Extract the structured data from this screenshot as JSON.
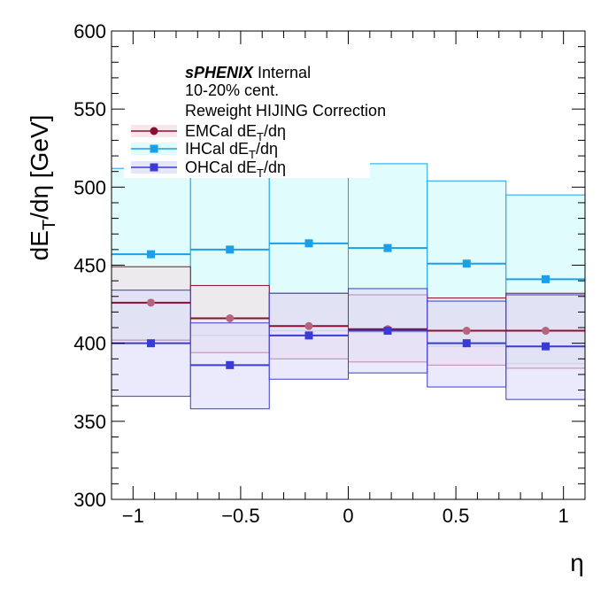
{
  "chart_data": {
    "type": "bar",
    "title": "",
    "xlabel": "η",
    "ylabel_main": "dE",
    "ylabel_sub": "T",
    "ylabel_rest": "/dη [GeV]",
    "xlim": [
      -1.1,
      1.1
    ],
    "ylim": [
      300,
      600
    ],
    "x_ticks": [
      -1,
      -0.5,
      0,
      0.5,
      1
    ],
    "x_tick_labels": [
      "−1",
      "−0.5",
      "0",
      "0.5",
      "1"
    ],
    "y_ticks": [
      300,
      350,
      400,
      450,
      500,
      550,
      600
    ],
    "y_tick_labels": [
      "300",
      "350",
      "400",
      "450",
      "500",
      "550",
      "600"
    ],
    "bin_edges": [
      -1.1,
      -0.733,
      -0.367,
      0.0,
      0.367,
      0.733,
      1.1
    ],
    "bin_centers": [
      -0.917,
      -0.55,
      -0.183,
      0.183,
      0.55,
      0.917
    ],
    "annotations": {
      "brand": "sPHENIX",
      "brand_suffix": " Internal",
      "centrality": "10-20% cent.",
      "correction": "Reweight HIJING Correction"
    },
    "series": [
      {
        "name_prefix": "EMCal dE",
        "name_sub": "T",
        "name_suffix": "/dη",
        "color": "#8b0f2e",
        "marker_color": "#b5647e",
        "fill": "#f4dde3",
        "marker": "circle",
        "values": [
          426,
          416,
          411,
          409,
          408,
          408
        ],
        "band_low": [
          402,
          394,
          390,
          388,
          386,
          384
        ],
        "band_high": [
          449,
          437,
          432,
          431,
          429,
          432
        ]
      },
      {
        "name_prefix": "IHCal dE",
        "name_sub": "T",
        "name_suffix": "/dη",
        "color": "#1aa0e8",
        "marker_color": "#1aa0e8",
        "fill": "#dcfcfc",
        "marker": "square",
        "values": [
          457,
          460,
          464,
          461,
          451,
          441
        ],
        "band_low": [
          402,
          405,
          408,
          407,
          398,
          387
        ],
        "band_high": [
          512,
          516,
          520,
          515,
          504,
          495
        ]
      },
      {
        "name_prefix": "OHCal dE",
        "name_sub": "T",
        "name_suffix": "/dη",
        "color": "#3a3ad4",
        "marker_color": "#3a3ad4",
        "fill": "#dcdcfa",
        "marker": "square",
        "values": [
          400,
          386,
          405,
          408,
          400,
          398
        ],
        "band_low": [
          366,
          358,
          377,
          381,
          372,
          364
        ],
        "band_high": [
          434,
          413,
          432,
          435,
          427,
          431
        ]
      }
    ]
  }
}
